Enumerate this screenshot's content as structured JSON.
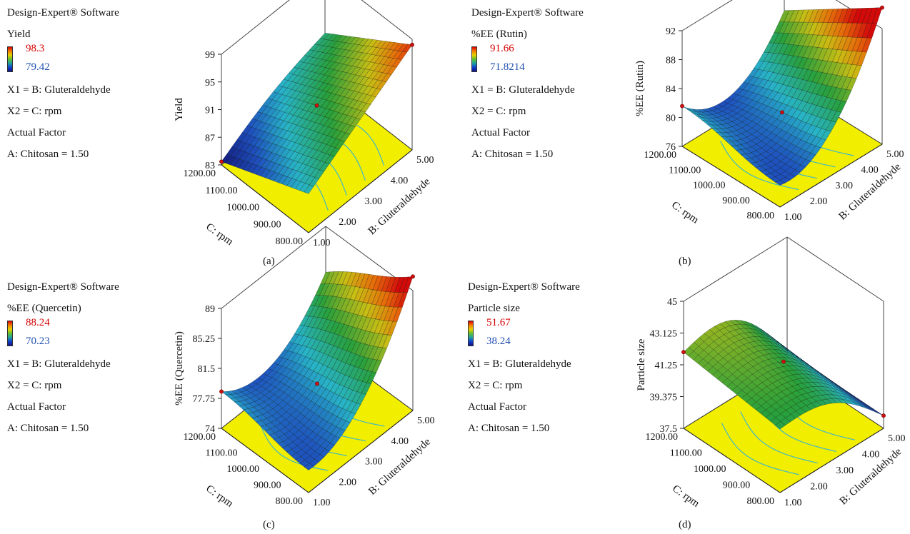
{
  "software_label": "Design-Expert® Software",
  "x1_label": "X1 = B: Gluteraldehyde",
  "x2_label": "X2 = C: rpm",
  "actual_factor_label": "Actual Factor",
  "actual_factor_value": "A: Chitosan = 1.50",
  "colors": {
    "contour_floor": "#f2ee00",
    "contour_line": "#3fb8c8",
    "design_point": "#d01010"
  },
  "chart_data": [
    {
      "type": "surface",
      "caption": "(a)",
      "response": "Yield",
      "range_high": "98.3",
      "range_low": "79.42",
      "zlabel": "Yield",
      "xlabel": "C: rpm",
      "ylabel": "B: Gluteraldehyde",
      "x_ticks": [
        "1200.00",
        "1100.00",
        "1000.00",
        "900.00",
        "800.00"
      ],
      "y_ticks": [
        "1.00",
        "2.00",
        "3.00",
        "4.00",
        "5.00"
      ],
      "z_ticks": [
        "83",
        "87",
        "91",
        "95",
        "99"
      ],
      "zlim": [
        83,
        99
      ]
    },
    {
      "type": "surface",
      "caption": "(b)",
      "response": "%EE (Rutin)",
      "range_high": "91.66",
      "range_low": "71.8214",
      "zlabel": "%EE (Rutin)",
      "xlabel": "C: rpm",
      "ylabel": "B: Gluteraldehyde",
      "x_ticks": [
        "1200.00",
        "1100.00",
        "1000.00",
        "900.00",
        "800.00"
      ],
      "y_ticks": [
        "1.00",
        "2.00",
        "3.00",
        "4.00",
        "5.00"
      ],
      "z_ticks": [
        "76",
        "80",
        "84",
        "88",
        "92"
      ],
      "zlim": [
        76,
        92
      ]
    },
    {
      "type": "surface",
      "caption": "(c)",
      "response": "%EE (Quercetin)",
      "range_high": "88.24",
      "range_low": "70.23",
      "zlabel": "%EE (Quercetin)",
      "xlabel": "C: rpm",
      "ylabel": "B: Gluteraldehyde",
      "x_ticks": [
        "1200.00",
        "1100.00",
        "1000.00",
        "900.00",
        "800.00"
      ],
      "y_ticks": [
        "1.00",
        "2.00",
        "3.00",
        "4.00",
        "5.00"
      ],
      "z_ticks": [
        "74",
        "77.75",
        "81.5",
        "85.25",
        "89"
      ],
      "zlim": [
        74,
        89
      ]
    },
    {
      "type": "surface",
      "caption": "(d)",
      "response": "Particle size",
      "range_high": "51.67",
      "range_low": "38.24",
      "zlabel": "Particle size",
      "xlabel": "C: rpm",
      "ylabel": "B: Gluteraldehyde",
      "x_ticks": [
        "1200.00",
        "1100.00",
        "1000.00",
        "900.00",
        "800.00"
      ],
      "y_ticks": [
        "1.00",
        "2.00",
        "3.00",
        "4.00",
        "5.00"
      ],
      "z_ticks": [
        "37.5",
        "39.375",
        "41.25",
        "43.125",
        "45"
      ],
      "zlim": [
        37.5,
        45
      ]
    }
  ]
}
